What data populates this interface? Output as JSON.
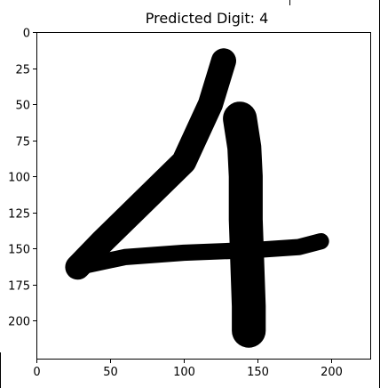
{
  "chart_data": {
    "type": "image",
    "title": "Predicted Digit: 4",
    "xlabel": "",
    "ylabel": "",
    "xlim": [
      0,
      227
    ],
    "ylim": [
      227,
      0
    ],
    "x_ticks": [
      0,
      50,
      100,
      150,
      200
    ],
    "y_ticks": [
      0,
      25,
      50,
      75,
      100,
      125,
      150,
      175,
      200
    ],
    "grid": false,
    "image_content": "handwritten digit 4, black ink on white background",
    "strokes": [
      {
        "name": "diagonal",
        "points": [
          [
            127,
            20
          ],
          [
            118,
            50
          ],
          [
            100,
            90
          ],
          [
            70,
            120
          ],
          [
            45,
            145
          ],
          [
            28,
            163
          ]
        ],
        "width": 17
      },
      {
        "name": "crossbar",
        "points": [
          [
            28,
            163
          ],
          [
            60,
            156
          ],
          [
            100,
            153
          ],
          [
            150,
            151
          ],
          [
            178,
            149
          ],
          [
            193,
            145
          ]
        ],
        "width": 11
      },
      {
        "name": "vertical",
        "points": [
          [
            138,
            60
          ],
          [
            141,
            80
          ],
          [
            142,
            100
          ],
          [
            142,
            130
          ],
          [
            143,
            160
          ],
          [
            144,
            190
          ],
          [
            144,
            207
          ]
        ],
        "width": 23
      }
    ]
  },
  "colors": {
    "ink": "#000000",
    "background": "#ffffff",
    "axis": "#000000"
  }
}
